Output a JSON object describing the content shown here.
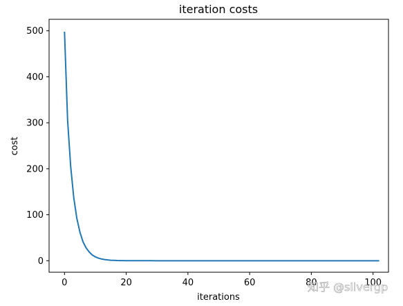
{
  "chart_data": {
    "type": "line",
    "title": "iteration costs",
    "xlabel": "iterations",
    "ylabel": "cost",
    "xlim": [
      -5,
      105
    ],
    "ylim": [
      -25,
      525
    ],
    "xticks": [
      0,
      20,
      40,
      60,
      80,
      100
    ],
    "yticks": [
      0,
      100,
      200,
      300,
      400,
      500
    ],
    "grid": false,
    "legend": "none",
    "series": [
      {
        "color": "#1f77b4",
        "x": [
          0,
          1,
          2,
          3,
          4,
          5,
          6,
          7,
          8,
          9,
          10,
          11,
          12,
          13,
          14,
          15,
          16,
          17,
          18,
          19,
          20,
          22,
          24,
          26,
          28,
          30,
          35,
          40,
          45,
          50,
          55,
          60,
          65,
          70,
          75,
          80,
          85,
          90,
          95,
          100,
          102
        ],
        "y": [
          498,
          306,
          205,
          137,
          92,
          62,
          41,
          28,
          19,
          12.5,
          8.4,
          5.6,
          3.8,
          2.5,
          1.7,
          1.1,
          0.8,
          0.5,
          0.35,
          0.24,
          0.16,
          0.07,
          0.03,
          0.015,
          0.007,
          0.003,
          0.001,
          0,
          0,
          0,
          0,
          0,
          0,
          0,
          0,
          0,
          0,
          0,
          0,
          0,
          0
        ]
      }
    ]
  },
  "watermark": "知乎 @silvergp"
}
